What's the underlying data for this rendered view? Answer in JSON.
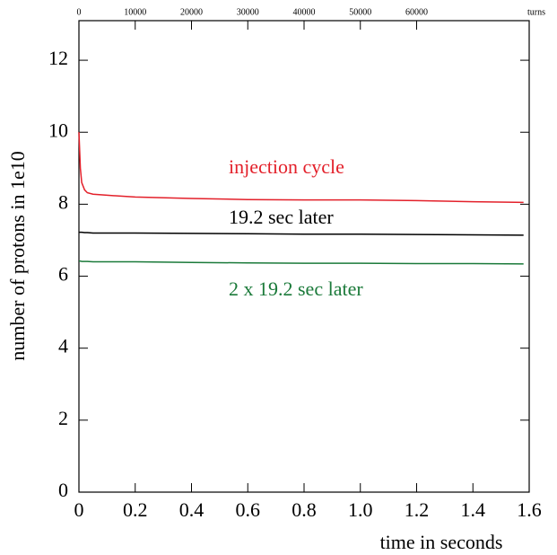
{
  "chart_data": {
    "type": "line",
    "xlabel": "time in seconds",
    "ylabel": "number of protons in 1e10",
    "x2label": "turns",
    "x": [
      0,
      0.005,
      0.01,
      0.02,
      0.03,
      0.05,
      0.1,
      0.2,
      0.4,
      0.6,
      0.8,
      1.0,
      1.2,
      1.4,
      1.58
    ],
    "series": [
      {
        "name": "injection cycle",
        "color": "#e3202a",
        "values": [
          10.0,
          9.0,
          8.6,
          8.4,
          8.32,
          8.28,
          8.25,
          8.2,
          8.16,
          8.13,
          8.12,
          8.12,
          8.1,
          8.07,
          8.05
        ]
      },
      {
        "name": "19.2 sec later",
        "color": "#000000",
        "values": [
          7.22,
          7.22,
          7.22,
          7.21,
          7.21,
          7.2,
          7.2,
          7.2,
          7.19,
          7.18,
          7.17,
          7.17,
          7.16,
          7.15,
          7.14
        ]
      },
      {
        "name": "2 x 19.2 sec later",
        "color": "#1b7a3a",
        "values": [
          6.42,
          6.42,
          6.41,
          6.41,
          6.41,
          6.4,
          6.4,
          6.4,
          6.38,
          6.37,
          6.36,
          6.36,
          6.35,
          6.35,
          6.34
        ]
      }
    ],
    "xlim": [
      0,
      1.6
    ],
    "xticks": [
      0,
      0.2,
      0.4,
      0.6,
      0.8,
      {
        "value": 1,
        "label": "1.0"
      },
      1.2,
      1.4,
      1.6
    ],
    "x2lim": [
      0,
      80000
    ],
    "x2ticks": [
      0,
      10000,
      20000,
      30000,
      40000,
      50000,
      60000
    ],
    "ylim": [
      0,
      13.1
    ],
    "yticks": [
      0,
      2,
      4,
      6,
      8,
      10,
      12
    ],
    "grid": false
  }
}
